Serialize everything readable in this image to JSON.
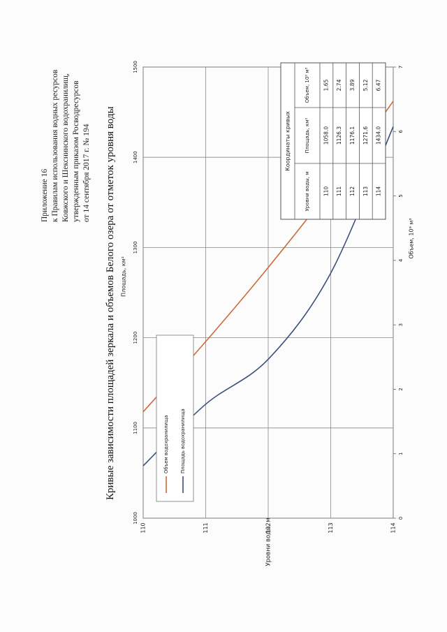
{
  "header": {
    "line1": "Приложение 16",
    "line2": "к Правилам использования водных ресурсов",
    "line3": "Ковжского и Шекснинского водохранилищ,",
    "line4": "утвержденным приказом Росводресурсов",
    "line5": "от 14 сентября 2017 г. № 194"
  },
  "chart_data": {
    "type": "line",
    "title": "Кривые зависимости площадей зеркала и объемов Белого озера от отметок уровня воды",
    "ylabel": "Уровни воды, м",
    "ylim": [
      110,
      114
    ],
    "y_ticks": [
      "110",
      "111",
      "112",
      "113",
      "114"
    ],
    "x_area_label": "Площадь, км²",
    "x_area_lim": [
      1000,
      1500
    ],
    "x_area_ticks": [
      "1000",
      "1100",
      "1200",
      "1300",
      "1400",
      "1500"
    ],
    "x_volume_label": "Объем, 10⁹ м³",
    "x_volume_lim": [
      0,
      7
    ],
    "x_volume_ticks": [
      "0",
      "1",
      "2",
      "3",
      "4",
      "5",
      "6",
      "7"
    ],
    "series": [
      {
        "name": "Объем водохранилища",
        "axis": "volume",
        "color": "#cc6a3a",
        "x": [
          1.65,
          2.74,
          3.89,
          5.12,
          6.47
        ],
        "y": [
          110,
          111,
          112,
          113,
          114
        ]
      },
      {
        "name": "Площадь водохранилища",
        "axis": "area",
        "color": "#3a4f7a",
        "x": [
          1058.0,
          1126.3,
          1176.1,
          1271.6,
          1434.0
        ],
        "y": [
          110,
          111,
          112,
          113,
          114
        ]
      }
    ],
    "table": {
      "title": "Координаты кривых",
      "headers": [
        "Уровни воды, м",
        "Площадь, км²",
        "Объем, 10⁹ м³"
      ],
      "rows": [
        [
          "110",
          "1058.0",
          "1.65"
        ],
        [
          "111",
          "1126.3",
          "2.74"
        ],
        [
          "112",
          "1176.1",
          "3.89"
        ],
        [
          "113",
          "1271.6",
          "5.12"
        ],
        [
          "114",
          "1434.0",
          "6.47"
        ]
      ]
    }
  }
}
